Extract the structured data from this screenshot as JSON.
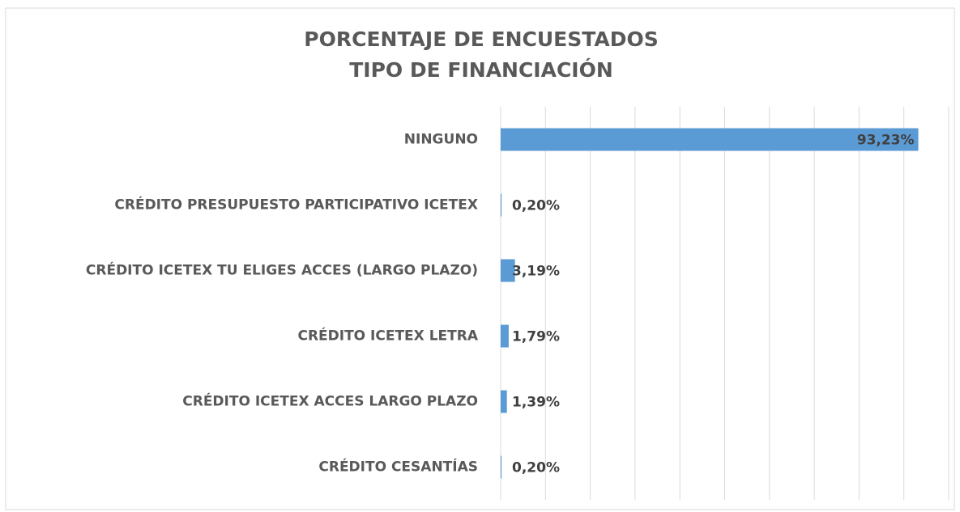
{
  "chart_data": {
    "type": "barh",
    "title": [
      "PORCENTAJE DE ENCUESTADOS",
      "TIPO DE FINANCIACIÓN"
    ],
    "categories": [
      "NINGUNO",
      "CRÉDITO PRESUPUESTO PARTICIPATIVO ICETEX",
      "CRÉDITO ICETEX TU ELIGES ACCES (LARGO PLAZO)",
      "CRÉDITO ICETEX LETRA",
      "CRÉDITO ICETEX ACCES LARGO PLAZO",
      "CRÉDITO CESANTÍAS"
    ],
    "values": [
      93.23,
      0.2,
      3.19,
      1.79,
      1.39,
      0.2
    ],
    "value_labels": [
      "93,23%",
      "0,20%",
      "3,19%",
      "1,79%",
      "1,39%",
      "0,20%"
    ],
    "color": "#5b9bd5",
    "xlim": [
      0,
      100
    ],
    "xticks": [
      0,
      10,
      20,
      30,
      40,
      50,
      60,
      70,
      80,
      90,
      100
    ],
    "grid": true
  }
}
